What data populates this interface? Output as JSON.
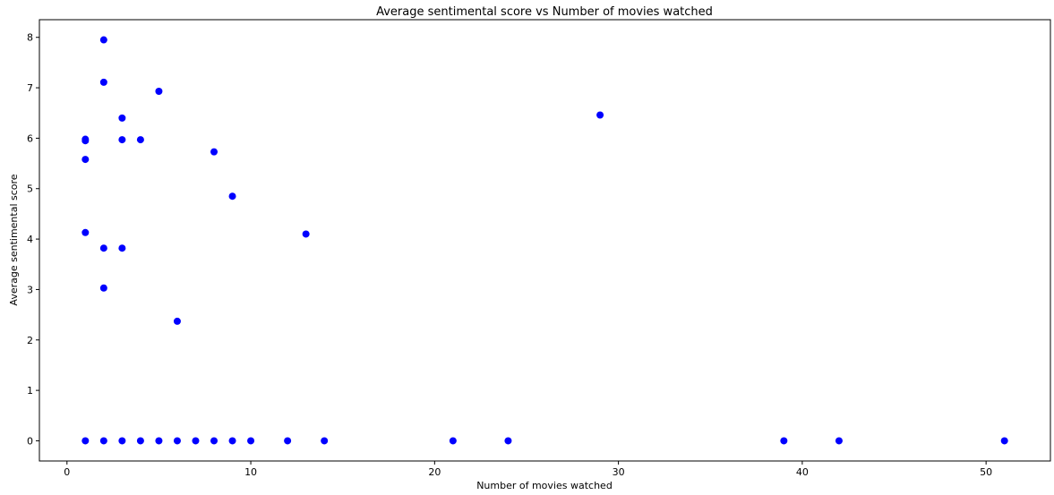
{
  "chart_data": {
    "type": "scatter",
    "title": "Average sentimental score vs Number of movies watched",
    "xlabel": "Number of movies watched",
    "ylabel": "Average sentimental score",
    "xlim": [
      -1.5,
      53.5
    ],
    "ylim": [
      -0.4,
      8.35
    ],
    "xticks": [
      0,
      10,
      20,
      30,
      40,
      50
    ],
    "yticks": [
      0,
      1,
      2,
      3,
      4,
      5,
      6,
      7,
      8
    ],
    "grid": false,
    "marker_color": "#0000ff",
    "points": [
      {
        "x": 1,
        "y": 5.98
      },
      {
        "x": 1,
        "y": 5.95
      },
      {
        "x": 1,
        "y": 5.58
      },
      {
        "x": 1,
        "y": 4.13
      },
      {
        "x": 1,
        "y": 0
      },
      {
        "x": 2,
        "y": 7.95
      },
      {
        "x": 2,
        "y": 7.11
      },
      {
        "x": 2,
        "y": 3.82
      },
      {
        "x": 2,
        "y": 3.03
      },
      {
        "x": 2,
        "y": 0
      },
      {
        "x": 3,
        "y": 6.4
      },
      {
        "x": 3,
        "y": 5.97
      },
      {
        "x": 3,
        "y": 3.82
      },
      {
        "x": 3,
        "y": 0
      },
      {
        "x": 4,
        "y": 5.97
      },
      {
        "x": 4,
        "y": 0
      },
      {
        "x": 5,
        "y": 6.93
      },
      {
        "x": 5,
        "y": 0
      },
      {
        "x": 6,
        "y": 2.37
      },
      {
        "x": 6,
        "y": 0
      },
      {
        "x": 7,
        "y": 0
      },
      {
        "x": 8,
        "y": 5.73
      },
      {
        "x": 8,
        "y": 0
      },
      {
        "x": 9,
        "y": 4.85
      },
      {
        "x": 9,
        "y": 0
      },
      {
        "x": 10,
        "y": 0
      },
      {
        "x": 12,
        "y": 0
      },
      {
        "x": 13,
        "y": 4.1
      },
      {
        "x": 14,
        "y": 0
      },
      {
        "x": 21,
        "y": 0
      },
      {
        "x": 24,
        "y": 0
      },
      {
        "x": 29,
        "y": 6.46
      },
      {
        "x": 39,
        "y": 0
      },
      {
        "x": 42,
        "y": 0
      },
      {
        "x": 51,
        "y": 0
      }
    ]
  }
}
